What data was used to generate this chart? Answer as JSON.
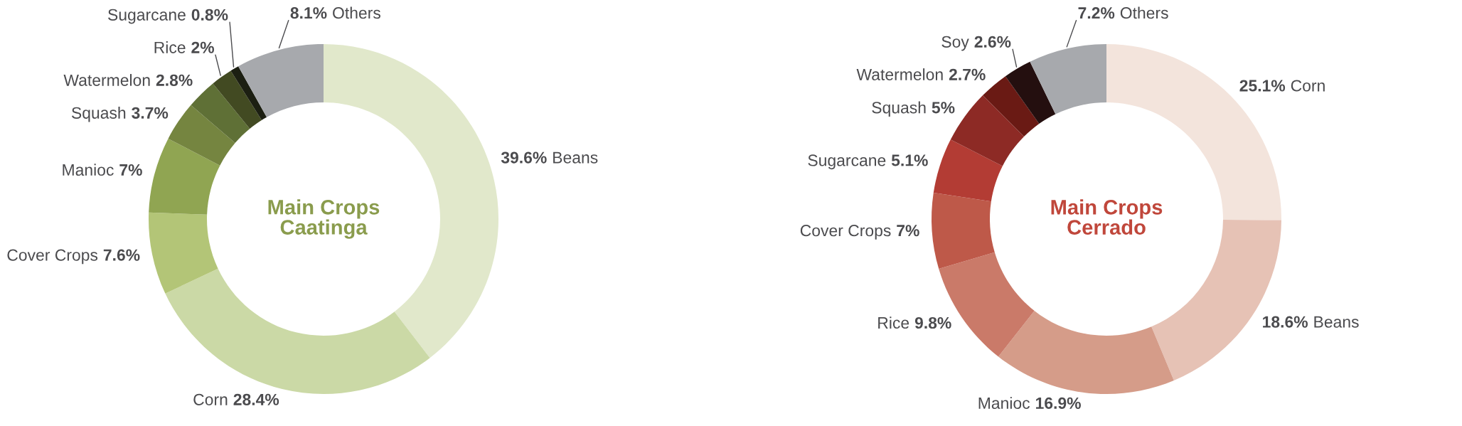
{
  "chart_data": [
    {
      "type": "donut",
      "title": "Main Crops\nCaatinga",
      "categories": [
        "Beans",
        "Corn",
        "Cover Crops",
        "Manioc",
        "Squash",
        "Watermelon",
        "Rice",
        "Sugarcane",
        "Others"
      ],
      "values": [
        39.6,
        28.4,
        7.6,
        7,
        3.7,
        2.8,
        2,
        0.8,
        8.1
      ],
      "value_labels": [
        "39.6%",
        "28.4%",
        "7.6%",
        "7%",
        "3.7%",
        "2.8%",
        "2%",
        "0.8%",
        "8.1%"
      ],
      "colors": [
        "#e1e8cb",
        "#cbd9a6",
        "#b3c577",
        "#90a552",
        "#758540",
        "#5f7036",
        "#424a22",
        "#1c1f12",
        "#a7a9ad"
      ]
    },
    {
      "type": "donut",
      "title": "Main Crops\nCerrado",
      "categories": [
        "Corn",
        "Beans",
        "Manioc",
        "Rice",
        "Cover Crops",
        "Sugarcane",
        "Squash",
        "Watermelon",
        "Soy",
        "Others"
      ],
      "values": [
        25.1,
        18.6,
        16.9,
        9.8,
        7,
        5.1,
        5,
        2.7,
        2.6,
        7.2
      ],
      "value_labels": [
        "25.1%",
        "18.6%",
        "16.9%",
        "9.8%",
        "7%",
        "5.1%",
        "5%",
        "2.7%",
        "2.6%",
        "7.2%"
      ],
      "colors": [
        "#f3e4dc",
        "#e6c2b5",
        "#d59c89",
        "#ca7a69",
        "#be5949",
        "#b33c34",
        "#8d2a25",
        "#6a1a14",
        "#240f0f",
        "#a7a9ad"
      ]
    }
  ]
}
